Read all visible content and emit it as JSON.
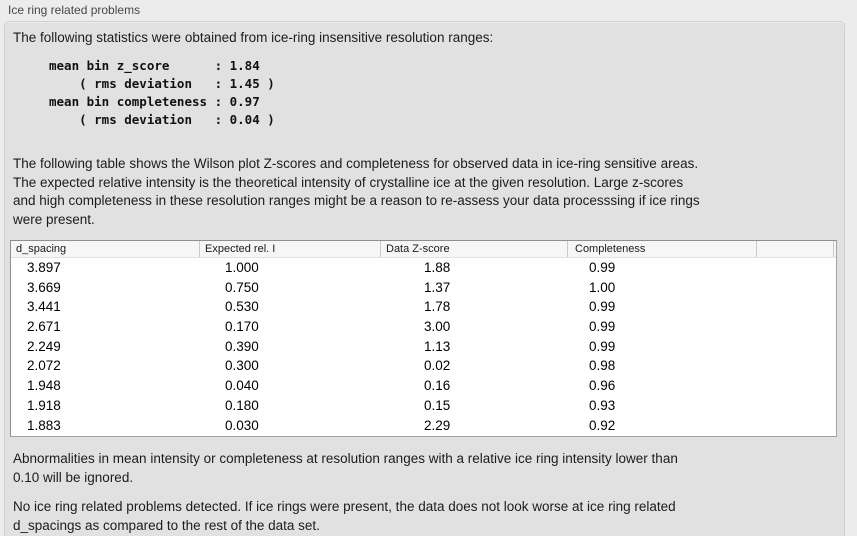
{
  "panel": {
    "title": "Ice ring related problems"
  },
  "intro": "The following statistics were obtained from ice-ring insensitive resolution ranges:",
  "stats_block": "mean bin z_score      : 1.84\n    ( rms deviation   : 1.45 )\nmean bin completeness : 0.97\n    ( rms deviation   : 0.04 )",
  "description": "The following table shows the Wilson plot Z-scores and completeness for observed data in ice-ring sensitive areas.\nThe expected relative intensity is the theoretical intensity of crystalline ice at the given resolution. Large z-scores\nand high completeness in these resolution ranges might be a reason to re-assess your data processsing if ice rings\nwere present.",
  "table": {
    "columns": [
      "d_spacing",
      "Expected rel. I",
      "Data Z-score",
      "Completeness"
    ],
    "rows": [
      [
        "3.897",
        "1.000",
        "1.88",
        "0.99"
      ],
      [
        "3.669",
        "0.750",
        "1.37",
        "1.00"
      ],
      [
        "3.441",
        "0.530",
        "1.78",
        "0.99"
      ],
      [
        "2.671",
        "0.170",
        "3.00",
        "0.99"
      ],
      [
        "2.249",
        "0.390",
        "1.13",
        "0.99"
      ],
      [
        "2.072",
        "0.300",
        "0.02",
        "0.98"
      ],
      [
        "1.948",
        "0.040",
        "0.16",
        "0.96"
      ],
      [
        "1.918",
        "0.180",
        "0.15",
        "0.93"
      ],
      [
        "1.883",
        "0.030",
        "2.29",
        "0.92"
      ]
    ]
  },
  "note_ignore": "Abnormalities in mean intensity or completeness at resolution ranges with a relative ice ring intensity lower than\n0.10 will be ignored.",
  "conclusion": "No ice ring related problems detected. If ice rings were present, the data does not look worse at ice ring related\nd_spacings as compared to the rest of the data set."
}
